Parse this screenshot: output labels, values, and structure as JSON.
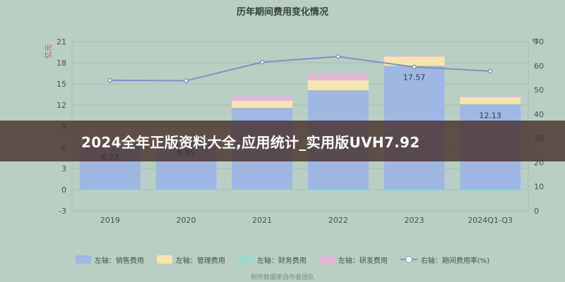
{
  "page": {
    "banner_text": "2024全年正版资料大全,应用统计_实用版UVH7.92",
    "footer_text": "制作数据来自作者团队"
  },
  "colors": {
    "sales": "#9fb7e3",
    "management": "#f6e6ad",
    "finance": "#9fd8cc",
    "rnd": "#e2b8d4",
    "rate_line": "#7b92c9",
    "axis_left_label": "#c24d4d",
    "grid": "#a9bdb3"
  },
  "chart_data": {
    "type": "bar",
    "title": "历年期间费用变化情况",
    "categories": [
      "2019",
      "2020",
      "2021",
      "2022",
      "2023",
      "2024Q1-Q3"
    ],
    "left_axis": {
      "label": "亿元",
      "ylim": [
        -3,
        21
      ],
      "ticks": [
        -3,
        0,
        3,
        6,
        9,
        12,
        15,
        18,
        21
      ]
    },
    "right_axis": {
      "label": "%",
      "ylim": [
        0,
        70
      ],
      "ticks": [
        0,
        10,
        20,
        30,
        40,
        50,
        60,
        70
      ]
    },
    "series": [
      {
        "name": "左轴：销售费用",
        "key": "sales",
        "values": [
          6.23,
          6.85,
          11.6,
          14.1,
          17.57,
          12.13
        ]
      },
      {
        "name": "左轴：管理费用",
        "key": "management",
        "values": [
          0,
          0,
          1.0,
          1.4,
          1.3,
          1.0
        ]
      },
      {
        "name": "左轴：财务费用",
        "key": "finance",
        "values": [
          -0.15,
          -0.15,
          -0.1,
          -0.2,
          -0.3,
          -0.35
        ]
      },
      {
        "name": "左轴：研发费用",
        "key": "rnd",
        "values": [
          0,
          0,
          0.7,
          0.9,
          0.2,
          0.1
        ]
      },
      {
        "name": "右轴：期间费用率(%)",
        "key": "rate_line",
        "type": "line",
        "axis": "right",
        "values": [
          54,
          53.8,
          61.5,
          63.8,
          59.5,
          57.8
        ]
      }
    ],
    "bar_labels": [
      "6.23",
      "6.85",
      "",
      "",
      "17.57",
      "12.13"
    ],
    "grid": true,
    "legend_position": "bottom"
  }
}
